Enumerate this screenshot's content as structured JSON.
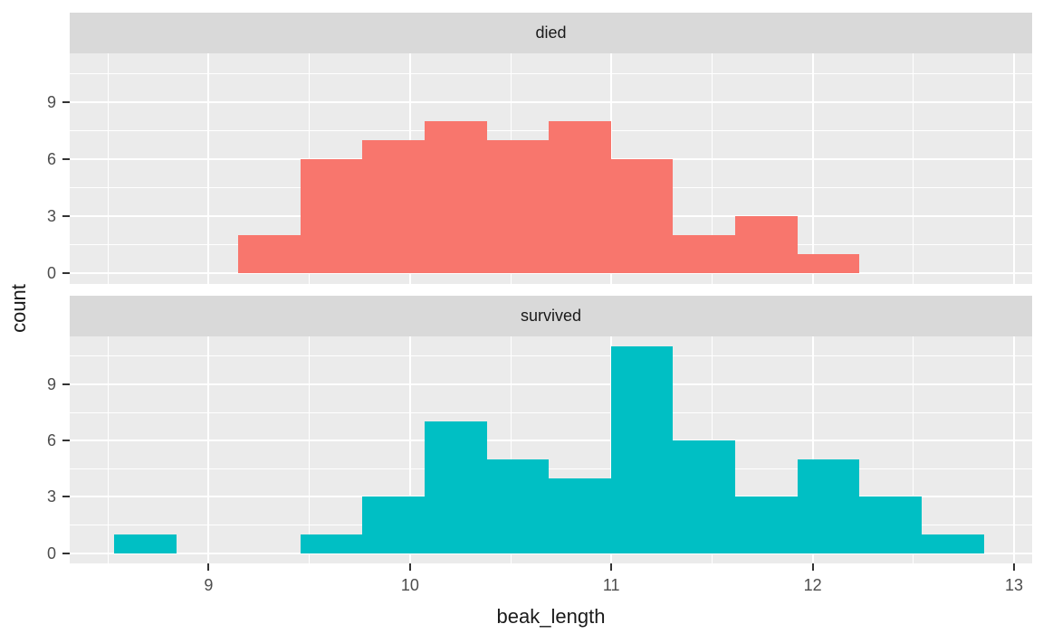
{
  "chart_data": {
    "type": "bar",
    "subtype": "faceted_histogram",
    "title": "",
    "xlabel": "beak_length",
    "ylabel": "count",
    "facet_labels": [
      "died",
      "survived"
    ],
    "bin_edges": [
      8.53,
      8.839,
      9.147,
      9.456,
      9.764,
      10.073,
      10.382,
      10.69,
      10.999,
      11.307,
      11.616,
      11.925,
      12.233,
      12.542,
      12.85
    ],
    "series": [
      {
        "name": "died",
        "color": "#F8766D",
        "counts": [
          0,
          0,
          2,
          6,
          7,
          8,
          7,
          8,
          6,
          2,
          3,
          1,
          0,
          0
        ]
      },
      {
        "name": "survived",
        "color": "#00BFC4",
        "counts": [
          1,
          0,
          0,
          1,
          3,
          7,
          5,
          4,
          11,
          6,
          3,
          5,
          3,
          1
        ]
      }
    ],
    "x_ticks": [
      9,
      10,
      11,
      12,
      13
    ],
    "y_ticks": [
      0,
      3,
      6,
      9
    ],
    "x_minor_ticks": [
      8.5,
      9.5,
      10.5,
      11.5,
      12.5
    ],
    "y_minor_ticks": [
      1.5,
      4.5,
      7.5,
      10.5
    ],
    "xlim": [
      8.31,
      13.09
    ],
    "ylim": [
      -0.55,
      11.55
    ],
    "grid": true,
    "legend_position": "none"
  },
  "theme": {
    "background": "#FFFFFF",
    "panel_background": "#EBEBEB",
    "strip_background": "#D9D9D9",
    "grid_color": "#FFFFFF",
    "tick_mark_color": "#333333",
    "tick_label_color": "#4D4D4D",
    "title_color": "#1A1A1A",
    "strip_text_color": "#1A1A1A"
  }
}
